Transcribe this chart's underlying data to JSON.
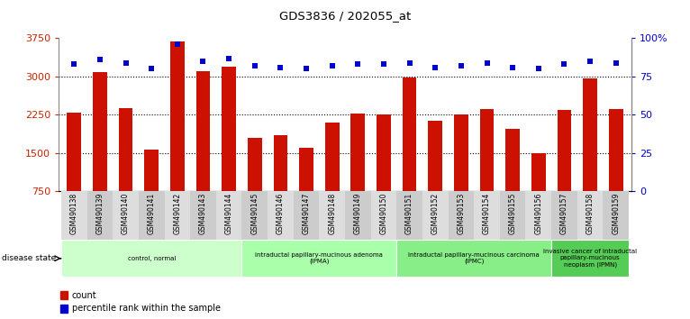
{
  "title": "GDS3836 / 202055_at",
  "samples": [
    "GSM490138",
    "GSM490139",
    "GSM490140",
    "GSM490141",
    "GSM490142",
    "GSM490143",
    "GSM490144",
    "GSM490145",
    "GSM490146",
    "GSM490147",
    "GSM490148",
    "GSM490149",
    "GSM490150",
    "GSM490151",
    "GSM490152",
    "GSM490153",
    "GSM490154",
    "GSM490155",
    "GSM490156",
    "GSM490157",
    "GSM490158",
    "GSM490159"
  ],
  "counts": [
    2300,
    3080,
    2380,
    1570,
    3680,
    3110,
    3200,
    1800,
    1850,
    1600,
    2100,
    2280,
    2250,
    2990,
    2130,
    2260,
    2360,
    1980,
    1490,
    2350,
    2960,
    2370
  ],
  "percentiles": [
    83,
    86,
    84,
    80,
    96,
    85,
    87,
    82,
    81,
    80,
    82,
    83,
    83,
    84,
    81,
    82,
    84,
    81,
    80,
    83,
    85,
    84
  ],
  "ylim_left": [
    750,
    3750
  ],
  "ylim_right": [
    0,
    100
  ],
  "yticks_left": [
    750,
    1500,
    2250,
    3000,
    3750
  ],
  "yticks_right": [
    0,
    25,
    50,
    75,
    100
  ],
  "ytick_labels_left": [
    "750",
    "1500",
    "2250",
    "3000",
    "3750"
  ],
  "ytick_labels_right": [
    "0",
    "25",
    "50",
    "75",
    "100%"
  ],
  "bar_color": "#cc1100",
  "dot_color": "#0000cc",
  "bg_color": "#ffffff",
  "tick_label_color_left": "#cc2200",
  "tick_label_color_right": "#0000cc",
  "disease_groups": [
    {
      "label": "control, normal",
      "start": 0,
      "end": 7,
      "color": "#ccffcc"
    },
    {
      "label": "intraductal papillary-mucinous adenoma\n(IPMA)",
      "start": 7,
      "end": 13,
      "color": "#aaffaa"
    },
    {
      "label": "intraductal papillary-mucinous carcinoma\n(IPMC)",
      "start": 13,
      "end": 19,
      "color": "#88ee88"
    },
    {
      "label": "invasive cancer of intraductal\npapillary-mucinous\nneoplasm (IPMN)",
      "start": 19,
      "end": 22,
      "color": "#55cc55"
    }
  ],
  "legend_count_label": "count",
  "legend_pct_label": "percentile rank within the sample",
  "disease_state_label": "disease state"
}
